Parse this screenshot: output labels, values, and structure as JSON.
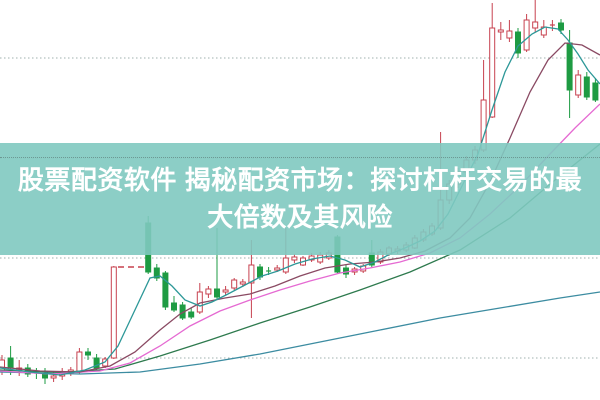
{
  "banner": {
    "title_line1": "股票配资软件 揭秘配资市场：探讨杠杆交易的最",
    "title_line2": "大倍数及其风险",
    "text_color": "#ffffff",
    "background": "rgba(127,201,192,0.9)"
  },
  "chart_data": {
    "type": "candlestick",
    "title": "",
    "xlabel": "",
    "ylabel": "",
    "background": "#ffffff",
    "grid": "horizontal dotted lines, no axis labels visible",
    "legend_position": "none",
    "axis": {
      "price_top": 22.9,
      "price_bottom": 2.9,
      "x_range": [
        0,
        600
      ]
    },
    "gridline_prices": [
      20,
      15,
      10,
      5
    ],
    "colors": {
      "up": "#c7414f",
      "down": "#1e9b43",
      "grid": "#9fb0ae"
    },
    "halt_marker": {
      "x_start": 118,
      "x_end": 148,
      "price": 9.55,
      "style": "dashed",
      "color": "#c7414f"
    },
    "candles": [
      [
        2,
        4.3,
        5.15,
        4.15,
        4.9
      ],
      [
        10.6,
        5.0,
        5.6,
        4.15,
        4.5
      ],
      [
        19.2,
        4.4,
        4.9,
        4.1,
        4.5
      ],
      [
        27.8,
        4.5,
        4.7,
        4.05,
        4.2
      ],
      [
        36.4,
        4.25,
        4.5,
        3.95,
        4.2
      ],
      [
        45,
        4.25,
        4.5,
        3.7,
        4.0
      ],
      [
        53.6,
        4.0,
        4.35,
        3.8,
        4.1
      ],
      [
        62.2,
        4.1,
        4.5,
        3.9,
        4.3
      ],
      [
        70.8,
        4.25,
        4.55,
        4.1,
        4.4
      ],
      [
        79.4,
        4.3,
        5.5,
        4.2,
        5.3
      ],
      [
        88,
        5.3,
        5.5,
        4.9,
        5.15
      ],
      [
        96.6,
        5.0,
        5.2,
        4.4,
        4.5
      ],
      [
        105.2,
        4.6,
        5.05,
        4.5,
        4.95
      ],
      [
        113.8,
        5.0,
        9.6,
        4.95,
        9.55
      ],
      [
        148.2,
        11.75,
        12.1,
        9.2,
        9.3
      ],
      [
        156.8,
        9.5,
        9.7,
        8.85,
        9.0
      ],
      [
        165.4,
        9.25,
        9.35,
        7.4,
        7.55
      ],
      [
        174,
        7.75,
        8.1,
        7.3,
        7.4
      ],
      [
        182.6,
        7.65,
        7.8,
        6.9,
        7.0
      ],
      [
        191.2,
        7.3,
        7.5,
        6.95,
        7.05
      ],
      [
        199.8,
        7.3,
        8.75,
        7.2,
        8.3
      ],
      [
        208.4,
        8.2,
        8.6,
        8.0,
        8.45
      ],
      [
        217,
        8.45,
        11.5,
        7.95,
        8.05
      ],
      [
        225.6,
        8.3,
        8.6,
        8.15,
        8.4
      ],
      [
        234.2,
        8.5,
        9.0,
        8.4,
        8.9
      ],
      [
        242.8,
        8.7,
        8.95,
        8.55,
        8.8
      ],
      [
        251.4,
        8.75,
        10.9,
        7.0,
        9.65
      ],
      [
        260,
        9.55,
        9.7,
        8.9,
        9.05
      ],
      [
        268.6,
        9.35,
        9.55,
        9.15,
        9.3
      ],
      [
        277.2,
        9.4,
        9.65,
        9.3,
        9.5
      ],
      [
        285.8,
        9.3,
        11.5,
        9.2,
        10.0
      ],
      [
        294.4,
        9.9,
        10.2,
        9.75,
        10.05
      ],
      [
        303,
        9.65,
        10.1,
        9.6,
        10.0
      ],
      [
        311.6,
        9.9,
        10.25,
        9.8,
        10.1
      ],
      [
        320.2,
        9.8,
        10.3,
        9.7,
        10.15
      ],
      [
        328.8,
        10.0,
        10.4,
        9.9,
        10.25
      ],
      [
        337.4,
        11.05,
        11.15,
        9.2,
        9.3
      ],
      [
        346,
        9.5,
        9.65,
        9.0,
        9.2
      ],
      [
        354.6,
        9.3,
        9.55,
        9.15,
        9.45
      ],
      [
        363.2,
        9.35,
        9.7,
        9.25,
        9.6
      ],
      [
        371.8,
        10.25,
        10.9,
        9.55,
        9.65
      ],
      [
        380.4,
        9.8,
        10.45,
        9.7,
        10.3
      ],
      [
        389,
        10.2,
        10.6,
        10.1,
        10.5
      ],
      [
        397.6,
        10.35,
        10.6,
        10.2,
        10.45
      ],
      [
        406.2,
        10.4,
        10.8,
        10.3,
        10.65
      ],
      [
        414.8,
        10.5,
        11.15,
        10.45,
        11.0
      ],
      [
        423.4,
        10.9,
        11.45,
        10.8,
        11.3
      ],
      [
        432,
        11.2,
        11.75,
        11.1,
        11.6
      ],
      [
        440.6,
        11.5,
        16.3,
        11.4,
        12.9
      ],
      [
        449.2,
        12.9,
        13.9,
        12.7,
        13.7
      ],
      [
        457.8,
        13.7,
        14.5,
        13.5,
        14.3
      ],
      [
        466.4,
        14.3,
        15.1,
        14.1,
        14.9
      ],
      [
        475,
        14.9,
        15.6,
        14.7,
        15.4
      ],
      [
        483.6,
        15.4,
        19.9,
        15.3,
        17.9
      ],
      [
        492.2,
        17.05,
        22.75,
        17.0,
        21.5
      ],
      [
        500.8,
        21.3,
        21.8,
        20.9,
        21.4
      ],
      [
        509.4,
        21.0,
        21.9,
        20.8,
        21.35
      ],
      [
        518,
        21.3,
        21.5,
        20.0,
        20.25
      ],
      [
        526.6,
        20.4,
        22.2,
        20.3,
        21.9
      ],
      [
        535.2,
        21.5,
        23.0,
        21.3,
        21.8
      ],
      [
        543.8,
        21.15,
        21.9,
        21.0,
        21.55
      ],
      [
        552.4,
        21.6,
        21.9,
        21.35,
        21.65
      ],
      [
        561,
        21.75,
        21.95,
        21.2,
        21.4
      ],
      [
        569.6,
        20.75,
        21.4,
        17.0,
        18.4
      ],
      [
        578.2,
        18.15,
        19.4,
        18.0,
        19.15
      ],
      [
        586.8,
        19.05,
        19.3,
        17.9,
        18.05
      ],
      [
        595.4,
        18.75,
        19.0,
        17.8,
        17.9
      ]
    ],
    "moving_averages": [
      {
        "name": "MA60",
        "color": "#3c8ca1",
        "points": [
          [
            0,
            4.3
          ],
          [
            80,
            4.2
          ],
          [
            140,
            4.3
          ],
          [
            200,
            4.7
          ],
          [
            260,
            5.2
          ],
          [
            320,
            5.8
          ],
          [
            380,
            6.4
          ],
          [
            440,
            7.0
          ],
          [
            500,
            7.5
          ],
          [
            560,
            8.0
          ],
          [
            600,
            8.3
          ]
        ]
      },
      {
        "name": "MA30",
        "color": "#2e7a4e",
        "points": [
          [
            0,
            4.4
          ],
          [
            60,
            4.28
          ],
          [
            115,
            4.45
          ],
          [
            160,
            5.1
          ],
          [
            210,
            5.9
          ],
          [
            260,
            6.75
          ],
          [
            310,
            7.55
          ],
          [
            360,
            8.4
          ],
          [
            410,
            9.3
          ],
          [
            460,
            10.4
          ],
          [
            510,
            12.0
          ],
          [
            555,
            13.9
          ],
          [
            600,
            15.7
          ]
        ]
      },
      {
        "name": "MA20",
        "color": "#e56ad2",
        "points": [
          [
            0,
            4.35
          ],
          [
            50,
            4.2
          ],
          [
            100,
            4.35
          ],
          [
            130,
            4.75
          ],
          [
            160,
            5.6
          ],
          [
            190,
            6.6
          ],
          [
            220,
            7.35
          ],
          [
            250,
            7.9
          ],
          [
            280,
            8.4
          ],
          [
            310,
            8.85
          ],
          [
            340,
            9.25
          ],
          [
            370,
            9.5
          ],
          [
            400,
            9.8
          ],
          [
            430,
            10.25
          ],
          [
            460,
            11.0
          ],
          [
            490,
            12.2
          ],
          [
            520,
            13.6
          ],
          [
            550,
            15.2
          ],
          [
            575,
            16.5
          ],
          [
            600,
            17.7
          ]
        ]
      },
      {
        "name": "MA10",
        "color": "#8a4a63",
        "points": [
          [
            0,
            4.55
          ],
          [
            40,
            4.35
          ],
          [
            80,
            4.3
          ],
          [
            110,
            4.6
          ],
          [
            135,
            5.3
          ],
          [
            160,
            6.4
          ],
          [
            180,
            7.2
          ],
          [
            200,
            7.75
          ],
          [
            225,
            8.0
          ],
          [
            250,
            8.2
          ],
          [
            275,
            8.6
          ],
          [
            300,
            9.1
          ],
          [
            325,
            9.5
          ],
          [
            350,
            9.7
          ],
          [
            375,
            9.8
          ],
          [
            400,
            10.0
          ],
          [
            425,
            10.35
          ],
          [
            450,
            11.0
          ],
          [
            470,
            12.0
          ],
          [
            490,
            13.8
          ],
          [
            510,
            16.0
          ],
          [
            530,
            18.3
          ],
          [
            548,
            19.9
          ],
          [
            565,
            20.75
          ],
          [
            582,
            20.65
          ],
          [
            600,
            20.15
          ]
        ]
      },
      {
        "name": "MA5",
        "color": "#2d9898",
        "points": [
          [
            0,
            4.5
          ],
          [
            30,
            4.3
          ],
          [
            60,
            4.15
          ],
          [
            85,
            4.4
          ],
          [
            105,
            4.8
          ],
          [
            118,
            5.6
          ],
          [
            150,
            9.0
          ],
          [
            160,
            9.1
          ],
          [
            172,
            8.6
          ],
          [
            185,
            7.9
          ],
          [
            200,
            7.6
          ],
          [
            212,
            7.8
          ],
          [
            228,
            8.2
          ],
          [
            245,
            8.65
          ],
          [
            262,
            9.1
          ],
          [
            278,
            9.35
          ],
          [
            295,
            9.7
          ],
          [
            312,
            9.95
          ],
          [
            330,
            10.1
          ],
          [
            345,
            9.9
          ],
          [
            360,
            9.55
          ],
          [
            375,
            9.8
          ],
          [
            390,
            10.2
          ],
          [
            405,
            10.5
          ],
          [
            420,
            10.85
          ],
          [
            435,
            11.35
          ],
          [
            448,
            12.2
          ],
          [
            462,
            13.6
          ],
          [
            478,
            15.2
          ],
          [
            492,
            17.4
          ],
          [
            505,
            19.3
          ],
          [
            518,
            20.6
          ],
          [
            532,
            21.2
          ],
          [
            545,
            21.55
          ],
          [
            558,
            21.45
          ],
          [
            568,
            20.9
          ],
          [
            578,
            20.2
          ],
          [
            588,
            19.4
          ],
          [
            600,
            18.7
          ]
        ]
      }
    ]
  }
}
